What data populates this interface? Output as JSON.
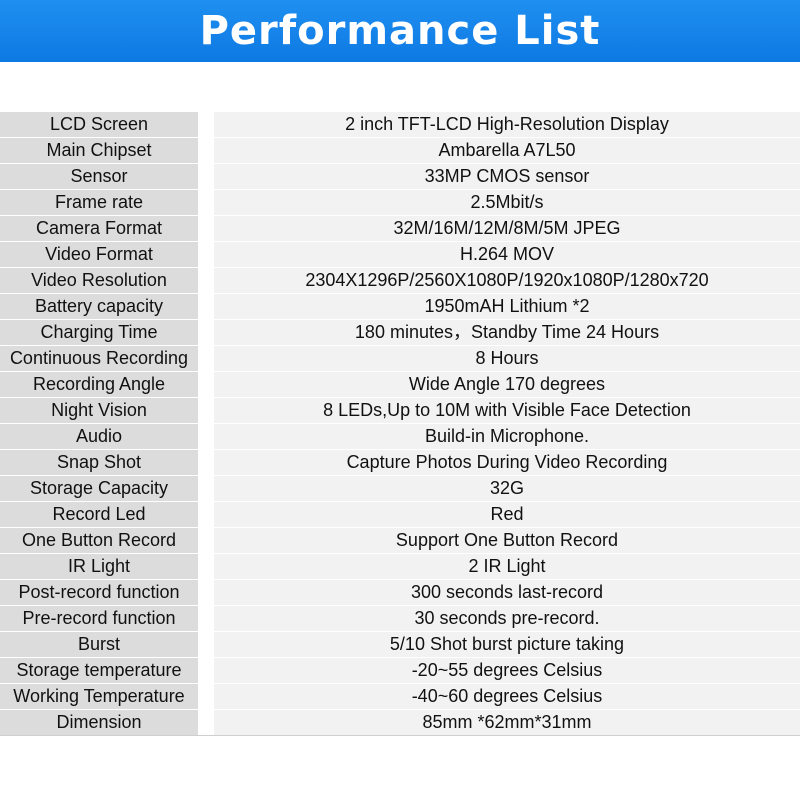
{
  "header": {
    "title": "Performance List",
    "background_color": "#1a8aee",
    "text_color": "#ffffff"
  },
  "specs": [
    {
      "label": "LCD Screen",
      "value": "2 inch TFT-LCD High-Resolution Display"
    },
    {
      "label": "Main Chipset",
      "value": "Ambarella A7L50"
    },
    {
      "label": "Sensor",
      "value": "33MP CMOS sensor"
    },
    {
      "label": "Frame rate",
      "value": "2.5Mbit/s"
    },
    {
      "label": "Camera Format",
      "value": "32M/16M/12M/8M/5M JPEG"
    },
    {
      "label": "Video Format",
      "value": "H.264 MOV"
    },
    {
      "label": "Video Resolution",
      "value": "2304X1296P/2560X1080P/1920x1080P/1280x720"
    },
    {
      "label": "Battery capacity",
      "value": "1950mAH Lithium *2"
    },
    {
      "label": "Charging Time",
      "value": "180 minutes，Standby Time 24 Hours"
    },
    {
      "label": "Continuous Recording",
      "value": "8 Hours"
    },
    {
      "label": "Recording Angle",
      "value": "Wide Angle 170 degrees"
    },
    {
      "label": "Night Vision",
      "value": "8 LEDs,Up to 10M with Visible Face Detection"
    },
    {
      "label": "Audio",
      "value": "Build-in Microphone."
    },
    {
      "label": "Snap Shot",
      "value": "Capture Photos During Video Recording"
    },
    {
      "label": "Storage Capacity",
      "value": "32G"
    },
    {
      "label": "Record Led",
      "value": "Red"
    },
    {
      "label": "One Button Record",
      "value": "Support One Button Record"
    },
    {
      "label": "IR Light",
      "value": "2 IR Light"
    },
    {
      "label": "Post-record function",
      "value": "300 seconds last-record"
    },
    {
      "label": "Pre-record function",
      "value": "30 seconds pre-record."
    },
    {
      "label": "Burst",
      "value": "5/10 Shot burst picture taking"
    },
    {
      "label": "Storage temperature",
      "value": "-20~55 degrees Celsius"
    },
    {
      "label": "Working Temperature",
      "value": "-40~60 degrees Celsius"
    },
    {
      "label": "Dimension",
      "value": "85mm *62mm*31mm"
    }
  ]
}
